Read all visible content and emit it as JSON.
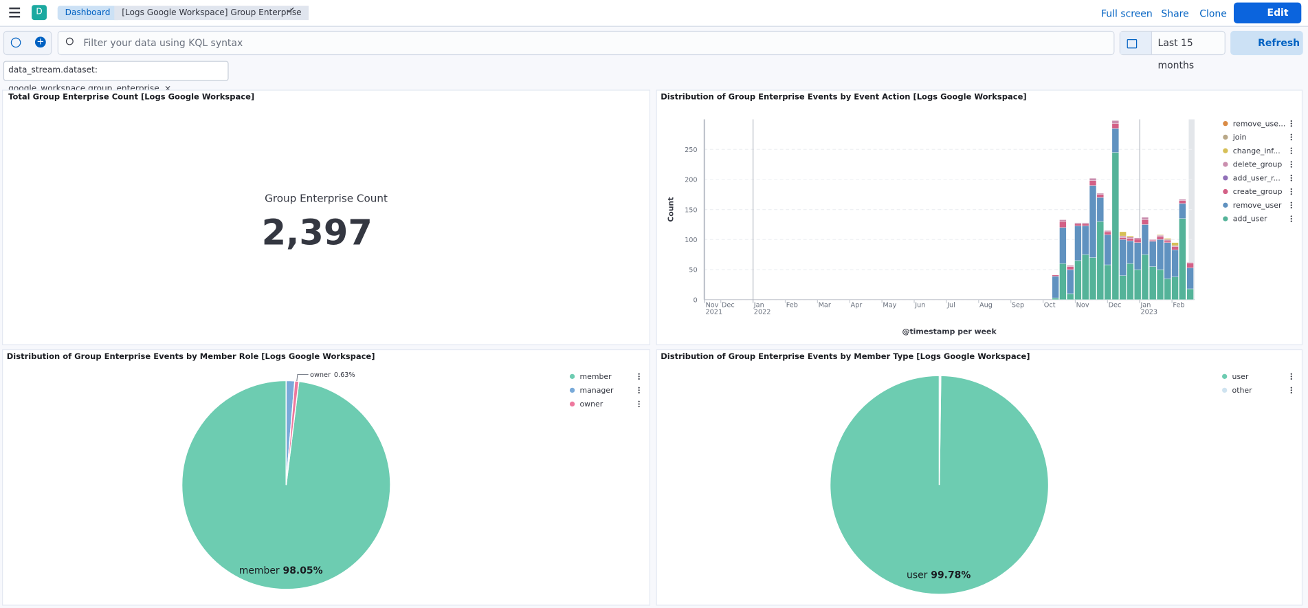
{
  "header": {
    "app_initial": "D",
    "breadcrumbs": [
      "Dashboard",
      "[Logs Google Workspace] Group Enterprise"
    ],
    "actions": [
      "Full screen",
      "Share",
      "Clone"
    ],
    "edit": "Edit"
  },
  "query": {
    "placeholder": "Filter your data using KQL syntax",
    "time_range": "Last 15 months",
    "refresh": "Refresh"
  },
  "filters": [
    "data_stream.dataset: google_workspace.group_enterprise"
  ],
  "metric": {
    "title": "Total Group Enterprise Count [Logs Google Workspace]",
    "label": "Group Enterprise Count",
    "value": 2397,
    "value_label": "2,397"
  },
  "chart_data": [
    {
      "type": "bar",
      "title": "Distribution of Group Enterprise Events by Event Action [Logs Google Workspace]",
      "x_label": "@timestamp per week",
      "y_label": "Count",
      "stacked": true,
      "grid": true,
      "x": [
        9.28,
        9.51,
        9.74,
        9.98,
        10.21,
        10.44,
        10.67,
        10.9,
        11.14,
        11.37,
        11.6,
        11.83,
        12.06,
        12.3,
        12.53,
        12.76,
        12.99,
        13.22,
        13.46
      ],
      "xlim": [
        -1.52,
        13.7
      ],
      "xticks": [
        {
          "value": -1.5,
          "label": "Nov 2021"
        },
        {
          "value": -1,
          "label": "Dec"
        },
        {
          "value": 0,
          "label": "Jan 2022"
        },
        {
          "value": 1,
          "label": "Feb"
        },
        {
          "value": 2,
          "label": "Mar"
        },
        {
          "value": 3,
          "label": "Apr"
        },
        {
          "value": 4,
          "label": "May"
        },
        {
          "value": 5,
          "label": "Jun"
        },
        {
          "value": 6,
          "label": "Jul"
        },
        {
          "value": 7,
          "label": "Aug"
        },
        {
          "value": 8,
          "label": "Sep"
        },
        {
          "value": 9,
          "label": "Oct"
        },
        {
          "value": 10,
          "label": "Nov"
        },
        {
          "value": 11,
          "label": "Dec"
        },
        {
          "value": 12,
          "label": "Jan 2023"
        },
        {
          "value": 13,
          "label": "Feb"
        }
      ],
      "ylim": [
        0,
        300
      ],
      "yticks": [
        0,
        50,
        100,
        150,
        200,
        250
      ],
      "series": [
        {
          "name": "add_user",
          "color": "#54b399",
          "values": [
            3,
            60,
            10,
            65,
            75,
            70,
            130,
            58,
            245,
            40,
            60,
            50,
            75,
            55,
            50,
            35,
            38,
            135,
            18
          ]
        },
        {
          "name": "remove_user",
          "color": "#6092c0",
          "values": [
            36,
            60,
            40,
            58,
            48,
            120,
            40,
            50,
            40,
            60,
            38,
            45,
            50,
            42,
            50,
            60,
            45,
            25,
            35
          ]
        },
        {
          "name": "create_group",
          "color": "#d36086",
          "values": [
            2,
            10,
            5,
            3,
            3,
            8,
            5,
            5,
            8,
            3,
            4,
            6,
            8,
            2,
            5,
            3,
            5,
            5,
            8
          ]
        },
        {
          "name": "add_user_r...",
          "color": "#9170b8",
          "values": [
            0,
            0,
            0,
            0,
            0,
            0,
            0,
            0,
            0,
            0,
            0,
            0,
            0,
            0,
            0,
            0,
            0,
            0,
            0
          ]
        },
        {
          "name": "delete_group",
          "color": "#ca8eae",
          "values": [
            0,
            3,
            2,
            2,
            2,
            4,
            2,
            2,
            5,
            3,
            2,
            2,
            4,
            1,
            2,
            2,
            2,
            2,
            1
          ]
        },
        {
          "name": "change_inf...",
          "color": "#d6bf57",
          "values": [
            0,
            0,
            0,
            0,
            0,
            0,
            0,
            0,
            0,
            7,
            2,
            0,
            0,
            0,
            1,
            2,
            5,
            0,
            0
          ]
        },
        {
          "name": "join",
          "color": "#b9a888",
          "values": [
            0,
            0,
            0,
            0,
            0,
            0,
            0,
            0,
            0,
            0,
            0,
            0,
            0,
            0,
            0,
            0,
            0,
            0,
            0
          ]
        },
        {
          "name": "remove_use...",
          "color": "#da8b45",
          "values": [
            0,
            0,
            0,
            0,
            0,
            0,
            0,
            0,
            0,
            0,
            0,
            0,
            0,
            0,
            0,
            0,
            0,
            0,
            0
          ]
        }
      ]
    },
    {
      "type": "pie",
      "title": "Distribution of Group Enterprise Events by Member Role [Logs Google Workspace]",
      "categories": [
        "member",
        "manager",
        "owner"
      ],
      "values": [
        98.05,
        1.32,
        0.63
      ],
      "value_labels": [
        "98.05%",
        null,
        "0.63%"
      ],
      "colors": [
        "#6dccb1",
        "#79aad9",
        "#ee789d"
      ]
    },
    {
      "type": "pie",
      "title": "Distribution of Group Enterprise Events by Member Type [Logs Google Workspace]",
      "categories": [
        "user",
        "other"
      ],
      "values": [
        99.78,
        0.22
      ],
      "value_labels": [
        "99.78%",
        null
      ],
      "colors": [
        "#6dccb1",
        "#cfe3f0"
      ]
    }
  ]
}
